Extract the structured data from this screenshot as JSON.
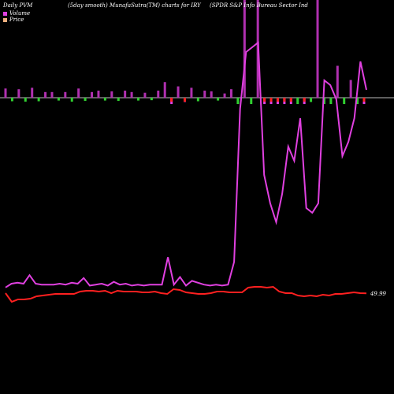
{
  "header": {
    "left": "Daily PVM",
    "mid": "(5day smooth) MunafaSutra(TM) charts for IRY",
    "right": "(SPDR S&P Info Bureau Sector Ind"
  },
  "legend": {
    "volume": "Volume",
    "price": "Price",
    "volume_color": "#e040e0",
    "price_color": "#f0b080"
  },
  "price_label": "49.99",
  "chart_data": {
    "type": "line",
    "title": "",
    "series": [
      {
        "name": "Price",
        "color": "#ff2020",
        "values": [
          50.0,
          49.45,
          49.6,
          49.6,
          49.65,
          49.8,
          49.85,
          49.9,
          49.95,
          49.95,
          49.95,
          49.95,
          50.1,
          50.15,
          50.15,
          50.1,
          50.15,
          50.0,
          50.15,
          50.1,
          50.1,
          50.1,
          50.05,
          50.05,
          50.1,
          50.0,
          49.95,
          50.25,
          50.2,
          50.05,
          50.0,
          49.95,
          49.95,
          50.0,
          50.1,
          50.1,
          50.05,
          50.05,
          50.05,
          50.35,
          50.4,
          50.4,
          50.35,
          50.4,
          50.1,
          50.0,
          50.0,
          49.85,
          49.8,
          49.85,
          49.8,
          49.9,
          49.85,
          49.95,
          49.95,
          50.0,
          50.05,
          50.0,
          49.99
        ]
      },
      {
        "name": "Volume",
        "color": "#e040e0",
        "values": [
          2.1,
          2.5,
          2.6,
          2.5,
          3.4,
          2.5,
          2.4,
          2.4,
          2.4,
          2.5,
          2.4,
          2.6,
          2.5,
          3.1,
          2.3,
          2.4,
          2.5,
          2.3,
          2.7,
          2.4,
          2.5,
          2.3,
          2.4,
          2.3,
          2.4,
          2.4,
          2.4,
          5.3,
          2.4,
          3.2,
          2.3,
          2.8,
          2.6,
          2.4,
          2.3,
          2.4,
          2.3,
          2.4,
          4.8,
          21.0,
          27.0,
          27.5,
          28.0,
          14.0,
          11.0,
          9.0,
          12.0,
          17.0,
          15.5,
          20.0,
          10.5,
          10.0,
          11.0,
          24.0,
          23.5,
          22.0,
          16.0,
          17.5,
          20.0,
          26.0,
          23.0
        ]
      }
    ],
    "volume_bars": {
      "values": [
        1.3,
        1.0,
        1.2,
        1.1,
        1.4,
        1.0,
        0.8,
        0.8,
        0.8,
        0.8,
        1.1,
        1.3,
        0.9,
        0.8,
        1.0,
        0.8,
        0.9,
        0.9,
        1.0,
        0.8,
        0.8,
        0.7,
        0.7,
        1.0,
        2.2,
        1.8,
        1.6,
        1.2,
        1.4,
        1.0,
        1.0,
        0.9,
        0.8,
        0.6,
        1.2,
        14.0,
        14.0,
        14.0,
        14.0,
        10.0,
        7.5,
        4.5,
        3.5,
        5.0,
        3.0,
        2.0,
        1.2,
        14.0,
        14.0,
        6.0,
        4.5,
        4.0,
        2.5,
        2.2,
        14.0
      ],
      "colors": [
        "#b030b0",
        "#30d030",
        "#b030b0",
        "#30d030",
        "#b030b0",
        "#30d030",
        "#b030b0",
        "#b030b0",
        "#30d030",
        "#b030b0",
        "#30d030",
        "#b030b0",
        "#30d030",
        "#b030b0",
        "#b030b0",
        "#30d030",
        "#b030b0",
        "#30d030",
        "#b030b0",
        "#b030b0",
        "#30d030",
        "#b030b0",
        "#30d030",
        "#b030b0",
        "#b030b0",
        "#ff2020",
        "#b030b0",
        "#ff2020",
        "#b030b0",
        "#30d030",
        "#b030b0",
        "#b030b0",
        "#30d030",
        "#b030b0",
        "#b030b0",
        "#30d030",
        "#b030b0",
        "#30d030",
        "#b030b0",
        "#ff2020",
        "#ff2020",
        "#ff2020",
        "#ff2020",
        "#ff2020",
        "#30d030",
        "#ff2020",
        "#30d030",
        "#b030b0",
        "#30d030",
        "#30d030",
        "#b030b0",
        "#30d030",
        "#b030b0",
        "#30d030",
        "#ff2020"
      ]
    },
    "grid": false,
    "legend_position": "top-left"
  }
}
